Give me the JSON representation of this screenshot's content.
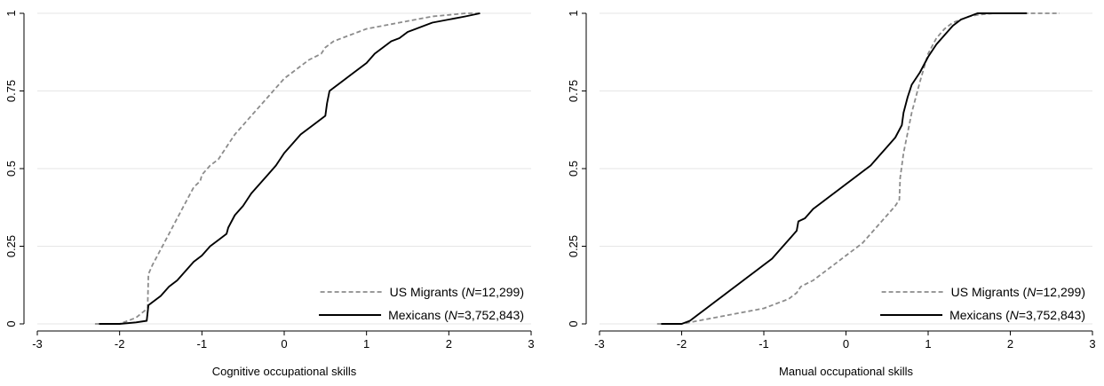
{
  "colors": {
    "migrants": "#8c8c8c",
    "mexicans": "#000000",
    "grid": "#e6e6e6",
    "axis": "#000000"
  },
  "chart_data": [
    {
      "type": "line",
      "xlabel": "Cognitive occupational skills",
      "ylabel": "",
      "xlim": [
        -3,
        3
      ],
      "ylim": [
        0,
        1
      ],
      "xticks": [
        "-3",
        "-2",
        "-1",
        "0",
        "1",
        "2",
        "3"
      ],
      "xtick_values": [
        -3,
        -2,
        -1,
        0,
        1,
        2,
        3
      ],
      "yticks": [
        "0",
        "0.25",
        "0.5",
        "0.75",
        "1"
      ],
      "ytick_values": [
        0,
        0.25,
        0.5,
        0.75,
        1
      ],
      "grid": "horizontal",
      "legend_position": "bottom-right",
      "series": [
        {
          "name_prefix": "US Migrants (",
          "name_n": "N",
          "name_suffix": "=12,299)",
          "style": "dashed",
          "color": "#8c8c8c",
          "x": [
            -2.3,
            -2.0,
            -1.8,
            -1.66,
            -1.65,
            -1.6,
            -1.5,
            -1.4,
            -1.3,
            -1.2,
            -1.1,
            -1.02,
            -1.0,
            -0.9,
            -0.8,
            -0.7,
            -0.6,
            -0.5,
            -0.4,
            -0.3,
            -0.2,
            -0.1,
            0.0,
            0.1,
            0.2,
            0.3,
            0.45,
            0.5,
            0.6,
            0.8,
            1.0,
            1.2,
            1.4,
            1.6,
            1.8,
            2.0,
            2.2,
            2.38
          ],
          "y": [
            0.0,
            0.0,
            0.02,
            0.05,
            0.16,
            0.19,
            0.24,
            0.29,
            0.34,
            0.39,
            0.44,
            0.46,
            0.48,
            0.51,
            0.53,
            0.57,
            0.61,
            0.64,
            0.67,
            0.7,
            0.73,
            0.76,
            0.79,
            0.81,
            0.83,
            0.85,
            0.87,
            0.89,
            0.91,
            0.93,
            0.95,
            0.96,
            0.97,
            0.98,
            0.99,
            0.995,
            1.0,
            1.0
          ]
        },
        {
          "name_prefix": "Mexicans (",
          "name_n": "N",
          "name_suffix": "=3,752,843)",
          "style": "solid",
          "color": "#000000",
          "x": [
            -2.25,
            -2.0,
            -1.8,
            -1.67,
            -1.65,
            -1.6,
            -1.5,
            -1.4,
            -1.3,
            -1.2,
            -1.1,
            -1.0,
            -0.9,
            -0.8,
            -0.7,
            -0.68,
            -0.6,
            -0.5,
            -0.4,
            -0.3,
            -0.2,
            -0.1,
            0.0,
            0.1,
            0.2,
            0.3,
            0.4,
            0.5,
            0.52,
            0.55,
            0.6,
            0.7,
            0.8,
            0.9,
            1.0,
            1.1,
            1.2,
            1.3,
            1.4,
            1.5,
            1.6,
            1.7,
            1.8,
            2.0,
            2.2,
            2.38
          ],
          "y": [
            0.0,
            0.0,
            0.005,
            0.01,
            0.06,
            0.07,
            0.09,
            0.12,
            0.14,
            0.17,
            0.2,
            0.22,
            0.25,
            0.27,
            0.29,
            0.31,
            0.35,
            0.38,
            0.42,
            0.45,
            0.48,
            0.51,
            0.55,
            0.58,
            0.61,
            0.63,
            0.65,
            0.67,
            0.71,
            0.75,
            0.76,
            0.78,
            0.8,
            0.82,
            0.84,
            0.87,
            0.89,
            0.91,
            0.92,
            0.94,
            0.95,
            0.96,
            0.97,
            0.98,
            0.99,
            1.0
          ]
        }
      ]
    },
    {
      "type": "line",
      "xlabel": "Manual occupational skills",
      "ylabel": "",
      "xlim": [
        -3,
        3
      ],
      "ylim": [
        0,
        1
      ],
      "xticks": [
        "-3",
        "-2",
        "-1",
        "0",
        "1",
        "2",
        "3"
      ],
      "xtick_values": [
        -3,
        -2,
        -1,
        0,
        1,
        2,
        3
      ],
      "yticks": [
        "0",
        "0.25",
        "0.5",
        "0.75",
        "1"
      ],
      "ytick_values": [
        0,
        0.25,
        0.5,
        0.75,
        1
      ],
      "grid": "horizontal",
      "legend_position": "bottom-right",
      "series": [
        {
          "name_prefix": "US Migrants (",
          "name_n": "N",
          "name_suffix": "=12,299)",
          "style": "dashed",
          "color": "#8c8c8c",
          "x": [
            -2.3,
            -2.0,
            -1.8,
            -1.6,
            -1.4,
            -1.2,
            -1.0,
            -0.8,
            -0.7,
            -0.6,
            -0.55,
            -0.4,
            -0.3,
            -0.2,
            -0.1,
            0.0,
            0.1,
            0.2,
            0.3,
            0.4,
            0.5,
            0.6,
            0.65,
            0.66,
            0.7,
            0.8,
            0.9,
            1.0,
            1.1,
            1.2,
            1.3,
            1.4,
            1.5,
            1.6,
            1.8,
            2.0,
            2.2,
            2.6
          ],
          "y": [
            0.0,
            0.0,
            0.01,
            0.02,
            0.03,
            0.04,
            0.05,
            0.07,
            0.08,
            0.1,
            0.12,
            0.14,
            0.16,
            0.18,
            0.2,
            0.22,
            0.24,
            0.26,
            0.29,
            0.32,
            0.35,
            0.38,
            0.4,
            0.47,
            0.55,
            0.68,
            0.78,
            0.87,
            0.92,
            0.95,
            0.97,
            0.98,
            0.99,
            0.995,
            1.0,
            1.0,
            1.0,
            1.0
          ]
        },
        {
          "name_prefix": "Mexicans (",
          "name_n": "N",
          "name_suffix": "=3,752,843)",
          "style": "solid",
          "color": "#000000",
          "x": [
            -2.25,
            -2.0,
            -1.9,
            -1.8,
            -1.7,
            -1.6,
            -1.5,
            -1.4,
            -1.3,
            -1.2,
            -1.1,
            -1.0,
            -0.9,
            -0.8,
            -0.7,
            -0.6,
            -0.58,
            -0.5,
            -0.4,
            -0.3,
            -0.2,
            -0.1,
            0.0,
            0.1,
            0.2,
            0.3,
            0.4,
            0.5,
            0.6,
            0.68,
            0.7,
            0.75,
            0.8,
            0.9,
            1.0,
            1.1,
            1.2,
            1.3,
            1.4,
            1.5,
            1.6,
            1.8,
            2.0,
            2.2
          ],
          "y": [
            0.0,
            0.0,
            0.01,
            0.03,
            0.05,
            0.07,
            0.09,
            0.11,
            0.13,
            0.15,
            0.17,
            0.19,
            0.21,
            0.24,
            0.27,
            0.3,
            0.33,
            0.34,
            0.37,
            0.39,
            0.41,
            0.43,
            0.45,
            0.47,
            0.49,
            0.51,
            0.54,
            0.57,
            0.6,
            0.64,
            0.68,
            0.73,
            0.77,
            0.81,
            0.86,
            0.9,
            0.93,
            0.96,
            0.98,
            0.99,
            1.0,
            1.0,
            1.0,
            1.0
          ]
        }
      ]
    }
  ]
}
